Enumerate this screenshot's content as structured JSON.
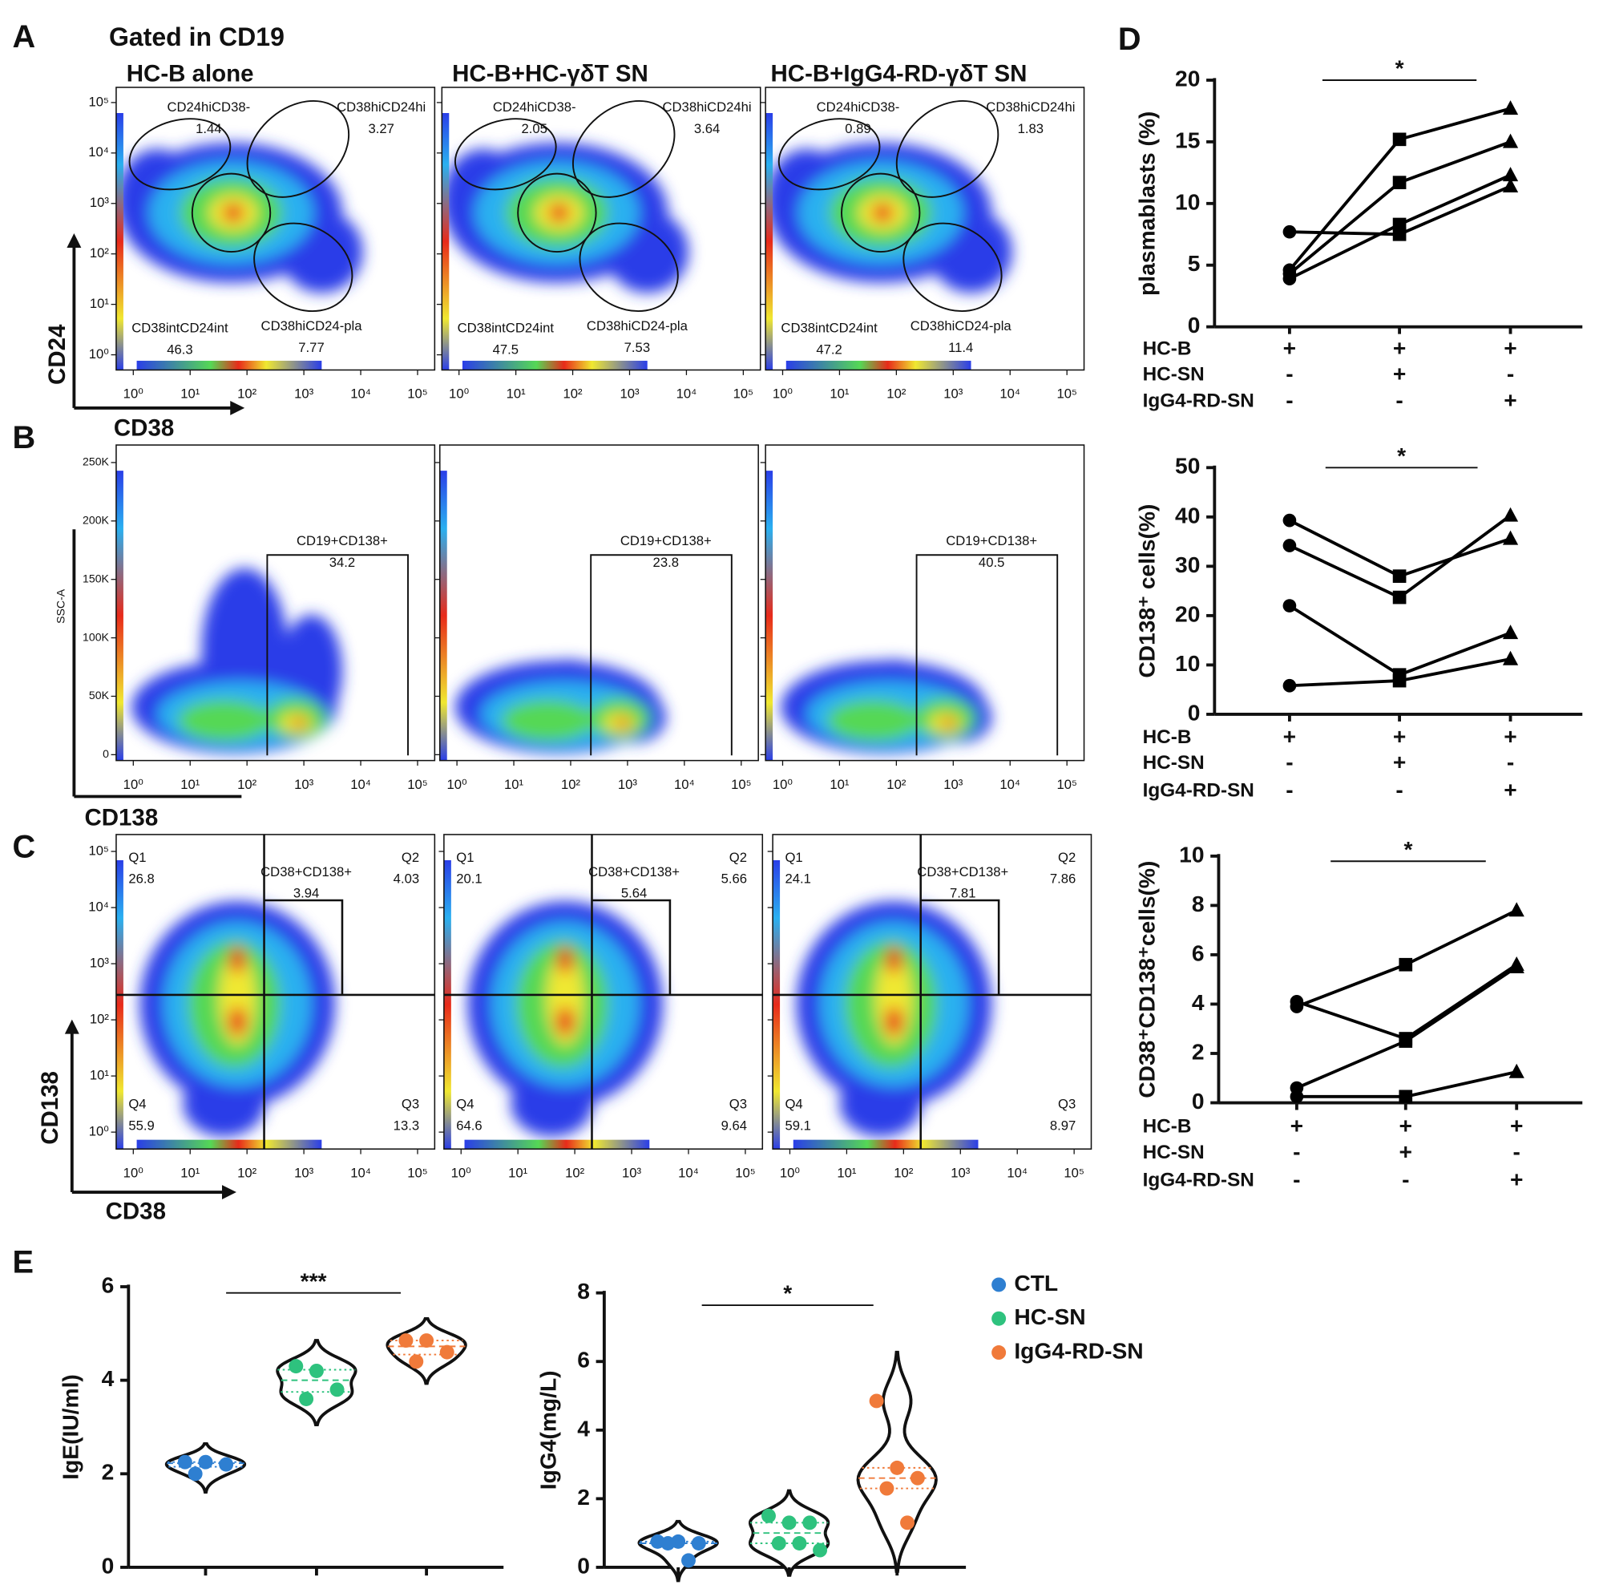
{
  "panel_labels": [
    "A",
    "B",
    "C",
    "D",
    "E"
  ],
  "flow": {
    "title": "Gated in CD19",
    "columns": [
      "HC-B alone",
      "HC-B+HC-γδT SN",
      "HC-B+IgG4-RD-γδT SN"
    ],
    "rows": [
      {
        "x_label": "CD38",
        "y_label": "CD24",
        "xscale": "log",
        "yscale": "log",
        "xlim": [
          0.5,
          200000
        ],
        "ylim": [
          0.5,
          200000
        ],
        "xticks": [
          {
            "value": 1,
            "label": "10⁰"
          },
          {
            "value": 10,
            "label": "10¹"
          },
          {
            "value": 100,
            "label": "10²"
          },
          {
            "value": 1000,
            "label": "10³"
          },
          {
            "value": 10000,
            "label": "10⁴"
          },
          {
            "value": 100000,
            "label": "10⁵"
          }
        ],
        "yticks": [
          {
            "value": 1,
            "label": "10⁰"
          },
          {
            "value": 10,
            "label": "10¹"
          },
          {
            "value": 100,
            "label": "10²"
          },
          {
            "value": 1000,
            "label": "10³"
          },
          {
            "value": 10000,
            "label": "10⁴"
          },
          {
            "value": 100000,
            "label": "10⁵"
          }
        ],
        "gates": [
          "CD24hiCD38-",
          "CD38hiCD24hi",
          "CD38intCD24int",
          "CD38hiCD24-pla"
        ],
        "values": [
          [
            1.44,
            3.27,
            46.3,
            7.77
          ],
          [
            2.05,
            3.64,
            47.5,
            7.53
          ],
          [
            0.89,
            1.83,
            47.2,
            11.4
          ]
        ]
      },
      {
        "x_label": "CD138",
        "y_label": "SSC-A",
        "xscale": "log",
        "yscale": "linear",
        "xlim": [
          0.5,
          200000
        ],
        "ylim": [
          -5000,
          265000
        ],
        "xticks": [
          {
            "value": 1,
            "label": "10⁰"
          },
          {
            "value": 10,
            "label": "10¹"
          },
          {
            "value": 100,
            "label": "10²"
          },
          {
            "value": 1000,
            "label": "10³"
          },
          {
            "value": 10000,
            "label": "10⁴"
          },
          {
            "value": 100000,
            "label": "10⁵"
          }
        ],
        "yticks": [
          0,
          {
            "value": 50000,
            "label": "50K"
          },
          {
            "value": 100000,
            "label": "100K"
          },
          {
            "value": 150000,
            "label": "150K"
          },
          {
            "value": 200000,
            "label": "200K"
          },
          {
            "value": 250000,
            "label": "250K"
          }
        ],
        "gates": [
          "CD19+CD138+"
        ],
        "values": [
          [
            34.2
          ],
          [
            23.8
          ],
          [
            40.5
          ]
        ]
      },
      {
        "x_label": "CD38",
        "y_label": "CD138",
        "xscale": "log",
        "yscale": "log",
        "xlim": [
          0.5,
          200000
        ],
        "ylim": [
          0.5,
          200000
        ],
        "xticks": [
          {
            "value": 1,
            "label": "10⁰"
          },
          {
            "value": 10,
            "label": "10¹"
          },
          {
            "value": 100,
            "label": "10²"
          },
          {
            "value": 1000,
            "label": "10³"
          },
          {
            "value": 10000,
            "label": "10⁴"
          },
          {
            "value": 100000,
            "label": "10⁵"
          }
        ],
        "yticks": [
          {
            "value": 1,
            "label": "10⁰"
          },
          {
            "value": 10,
            "label": "10¹"
          },
          {
            "value": 100,
            "label": "10²"
          },
          {
            "value": 1000,
            "label": "10³"
          },
          {
            "value": 10000,
            "label": "10⁴"
          },
          {
            "value": 100000,
            "label": "10⁵"
          }
        ],
        "gates": [
          "Q1",
          "Q2",
          "CD38+CD138+",
          "Q4",
          "Q3"
        ],
        "values": [
          [
            26.8,
            4.03,
            3.94,
            55.9,
            13.3
          ],
          [
            20.1,
            5.66,
            5.64,
            64.6,
            9.64
          ],
          [
            24.1,
            7.86,
            7.81,
            59.1,
            8.97
          ]
        ]
      }
    ]
  },
  "chart_data": [
    {
      "type": "line",
      "y_label": "plasmablasts (%)",
      "ylim": [
        0,
        20
      ],
      "yticks": [
        0,
        5,
        10,
        15,
        20
      ],
      "significance": "*",
      "color": "#000000",
      "markers": [
        "circle",
        "square",
        "triangle"
      ],
      "conditions": [
        {
          "name": "HC-B",
          "signs": [
            "+",
            "+",
            "+"
          ]
        },
        {
          "name": "HC-SN",
          "signs": [
            "-",
            "+",
            "-"
          ]
        },
        {
          "name": "IgG4-RD-SN",
          "signs": [
            "-",
            "-",
            "+"
          ]
        }
      ],
      "series": [
        {
          "values": [
            4.6,
            15.2,
            17.7
          ]
        },
        {
          "values": [
            4.3,
            11.7,
            15.0
          ]
        },
        {
          "values": [
            3.9,
            8.3,
            12.3
          ]
        },
        {
          "values": [
            7.7,
            7.5,
            11.4
          ]
        }
      ]
    },
    {
      "type": "line",
      "y_label": "CD138⁺ cells(%)",
      "ylim": [
        0,
        50
      ],
      "yticks": [
        0,
        10,
        20,
        30,
        40,
        50
      ],
      "significance": "*",
      "color": "#000000",
      "markers": [
        "circle",
        "square",
        "triangle"
      ],
      "conditions": [
        {
          "name": "HC-B",
          "signs": [
            "+",
            "+",
            "+"
          ]
        },
        {
          "name": "HC-SN",
          "signs": [
            "-",
            "+",
            "-"
          ]
        },
        {
          "name": "IgG4-RD-SN",
          "signs": [
            "-",
            "-",
            "+"
          ]
        }
      ],
      "series": [
        {
          "values": [
            39.3,
            28,
            35.6
          ]
        },
        {
          "values": [
            34.2,
            23.7,
            40.3
          ]
        },
        {
          "values": [
            22,
            8,
            16.5
          ]
        },
        {
          "values": [
            5.8,
            6.8,
            11.2
          ]
        }
      ]
    },
    {
      "type": "line",
      "y_label": "CD38⁺CD138⁺cells(%)",
      "ylim": [
        0,
        10
      ],
      "yticks": [
        0,
        2,
        4,
        6,
        8,
        10
      ],
      "significance": "*",
      "color": "#000000",
      "markers": [
        "circle",
        "square",
        "triangle"
      ],
      "conditions": [
        {
          "name": "HC-B",
          "signs": [
            "+",
            "+",
            "+"
          ]
        },
        {
          "name": "HC-SN",
          "signs": [
            "-",
            "+",
            "-"
          ]
        },
        {
          "name": "IgG4-RD-SN",
          "signs": [
            "-",
            "-",
            "+"
          ]
        }
      ],
      "series": [
        {
          "values": [
            4.1,
            2.6,
            5.6
          ]
        },
        {
          "values": [
            3.9,
            5.6,
            7.8
          ]
        },
        {
          "values": [
            0.6,
            2.5,
            5.5
          ]
        },
        {
          "values": [
            0.25,
            0.25,
            1.25
          ]
        }
      ]
    },
    {
      "type": "violin",
      "y_label": "IgE(IU/ml)",
      "ylim": [
        0,
        6
      ],
      "yticks": [
        0,
        2,
        4,
        6
      ],
      "significance": "***",
      "series": [
        {
          "color": "#2e7fd1",
          "values": [
            2.25,
            2.25,
            2.2,
            2.0
          ]
        },
        {
          "color": "#2ec27e",
          "values": [
            4.3,
            4.2,
            3.8,
            3.6
          ]
        },
        {
          "color": "#f07a3a",
          "values": [
            4.85,
            4.85,
            4.6,
            4.4
          ]
        }
      ]
    },
    {
      "type": "violin",
      "y_label": "IgG4(mg/L)",
      "ylim": [
        0,
        8
      ],
      "yticks": [
        0,
        2,
        4,
        6,
        8
      ],
      "significance": "*",
      "legend": true,
      "series": [
        {
          "name": "CTL",
          "color": "#2e7fd1",
          "values": [
            0.75,
            0.75,
            0.7,
            0.7,
            0.2
          ]
        },
        {
          "name": "HC-SN",
          "color": "#2ec27e",
          "values": [
            1.5,
            1.3,
            1.3,
            0.7,
            0.7,
            0.5
          ]
        },
        {
          "name": "IgG4-RD-SN",
          "color": "#f07a3a",
          "values": [
            4.85,
            2.9,
            2.6,
            2.3,
            1.3
          ]
        }
      ]
    }
  ]
}
